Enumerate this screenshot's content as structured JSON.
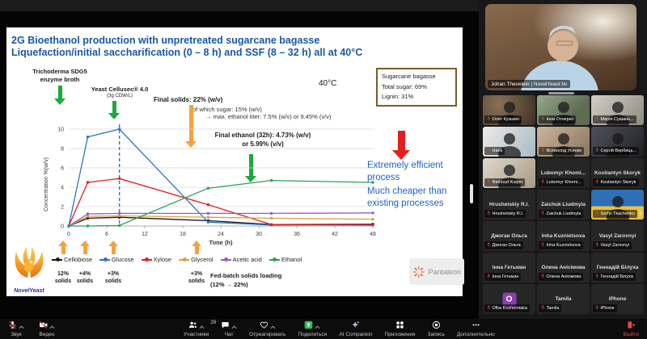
{
  "slide": {
    "title_line1": "2G Bioethanol production with unpretreated sugarcane bagasse",
    "title_line2": "Liquefaction/initial saccharification (0 – 8 h) and SSF (8 – 32 h) all at 40°C",
    "enzyme_label_1": "Trichoderma SDG5",
    "enzyme_label_2": "enzyme broth",
    "yeast_label_1": "Yeast Cellusec® 4.0",
    "yeast_label_2": "(3g CDW/L)",
    "temp_label": "40°C",
    "bagasse_box": {
      "line1": "Sugarcane bagasse",
      "line2": "Total sugar: 69%",
      "line3": "Lignin: 31%"
    },
    "final_solids": "Final solids: 22% (w/v)",
    "which_sugar": "of which sugar: 15% (w/v)",
    "max_titer": "→ max. ethanol titer: 7.5% (w/v) or 9.45% (v/v)",
    "final_ethanol_1": "Final ethanol (32h): 4.73% (w/v)",
    "final_ethanol_2": "or 5.99% (v/v)",
    "conclusion_1": "Extremely efficient process",
    "conclusion_2": "Much cheaper than existing processes",
    "feed_labels": [
      "12% solids",
      "+4% solids",
      "+3% solids",
      "+3% solids"
    ],
    "fed_batch_1": "Fed-batch solids loading",
    "fed_batch_2": "(12% → 22%)",
    "novelyeast_logo_text": "NovelYeast",
    "pantaleon_logo_text": "Pantaleon"
  },
  "chart_data": {
    "type": "line",
    "title": "",
    "xlabel": "Time (h)",
    "ylabel": "Concentration %(w/v)",
    "xlim": [
      0,
      48
    ],
    "ylim": [
      0,
      10
    ],
    "xticks": [
      0,
      6,
      12,
      18,
      24,
      30,
      36,
      42,
      48
    ],
    "yticks": [
      0,
      2,
      4,
      6,
      8,
      10
    ],
    "grid": true,
    "legend_position": "bottom",
    "dashed_vline_x": 8,
    "x": [
      0,
      3,
      8,
      22,
      32,
      48
    ],
    "series": [
      {
        "name": "Cellobiose",
        "color": "#1a1a1a",
        "values": [
          0,
          0.8,
          0.9,
          0.55,
          0.15,
          0.2
        ]
      },
      {
        "name": "Glucose",
        "color": "#2e75c6",
        "values": [
          0,
          9.2,
          10.0,
          0.4,
          0.1,
          0.15
        ]
      },
      {
        "name": "Xylose",
        "color": "#e02020",
        "values": [
          0,
          4.5,
          4.9,
          2.2,
          0.15,
          0.1
        ]
      },
      {
        "name": "Glycerol",
        "color": "#dda03e",
        "values": [
          0,
          1.0,
          1.05,
          0.9,
          0.8,
          0.7
        ]
      },
      {
        "name": "Acetic acid",
        "color": "#9857d3",
        "values": [
          0,
          1.25,
          1.3,
          1.3,
          1.3,
          1.35
        ]
      },
      {
        "name": "Ethanol",
        "color": "#2ca05a",
        "values": [
          0,
          0,
          0.05,
          3.9,
          4.7,
          4.5
        ]
      }
    ]
  },
  "meeting": {
    "speaker_label": "Johan Thevelein | NovelYeast bv",
    "next_page_chevron": "›",
    "participants": [
      {
        "type": "video",
        "name": "Олег Кузьмін",
        "bg": "bg-room1"
      },
      {
        "type": "video",
        "name": "Інна Отнерко",
        "bg": "bg-room2"
      },
      {
        "type": "video",
        "name": "Марія Сушань...",
        "bg": "bg-room3"
      },
      {
        "type": "video",
        "name": "Hans",
        "bg": "bg-room4"
      },
      {
        "type": "video",
        "name": "Всеволод Усенко",
        "bg": "bg-room5"
      },
      {
        "type": "video",
        "name": "Сергій Вербиць...",
        "bg": "bg-room6"
      },
      {
        "type": "video",
        "name": "Reinoud Kuiper",
        "bg": "bg-room7"
      },
      {
        "type": "name",
        "name": "Lubomyr  Khomi..."
      },
      {
        "type": "name",
        "name": "Kostiantyn Skoryk"
      },
      {
        "type": "name",
        "name": "Hrushetskiy R.I."
      },
      {
        "type": "name",
        "name": "Zaichuk Liudmyla"
      },
      {
        "type": "video",
        "name": "Serhii Tkachenko",
        "bg": "bg-flag"
      },
      {
        "type": "name",
        "name": "Джоган Ольга"
      },
      {
        "type": "name",
        "name": "Inha Kuznietsova"
      },
      {
        "type": "name",
        "name": "Vasyl Zarovnyi"
      },
      {
        "type": "name",
        "name": "Інна Гетьман"
      },
      {
        "type": "name",
        "name": "Олена Анісімова"
      },
      {
        "type": "name",
        "name": "Геннадій  Білуха"
      },
      {
        "type": "avatar",
        "name": "Olha Kozhemiaka",
        "letter": "O",
        "color": "#8a3fae"
      },
      {
        "type": "name",
        "name": "Tamila"
      },
      {
        "type": "name",
        "name": "iPhone"
      }
    ]
  },
  "toolbar": {
    "items": [
      {
        "id": "audio",
        "label": "Звук",
        "icon": "mic-off-icon",
        "caret": true
      },
      {
        "id": "video",
        "label": "Видео",
        "icon": "camera-off-icon",
        "caret": true
      },
      {
        "id": "participants",
        "label": "Участники",
        "icon": "participants-icon",
        "badge": "28",
        "caret": true
      },
      {
        "id": "chat",
        "label": "Чат",
        "icon": "chat-icon",
        "caret": true
      },
      {
        "id": "react",
        "label": "Отреагировать",
        "icon": "react-icon",
        "caret": true
      },
      {
        "id": "share",
        "label": "Поделиться",
        "icon": "share-screen-icon",
        "caret": true
      },
      {
        "id": "ai-companion",
        "label": "AI Companion",
        "icon": "ai-sparkle-icon"
      },
      {
        "id": "apps",
        "label": "Приложения",
        "icon": "apps-icon"
      },
      {
        "id": "record",
        "label": "Запись",
        "icon": "record-icon"
      },
      {
        "id": "more",
        "label": "Дополнительно",
        "icon": "more-icon"
      }
    ],
    "leave_label": "Выйти"
  },
  "colors": {
    "title_blue": "#1a56a8",
    "conclusion_blue": "#1f61c9",
    "arrow_green": "#1ea83e",
    "arrow_orange": "#f2a33c",
    "arrow_red": "#e31e1e",
    "share_green": "#2fbd59",
    "muted_red": "#d43a3a"
  }
}
